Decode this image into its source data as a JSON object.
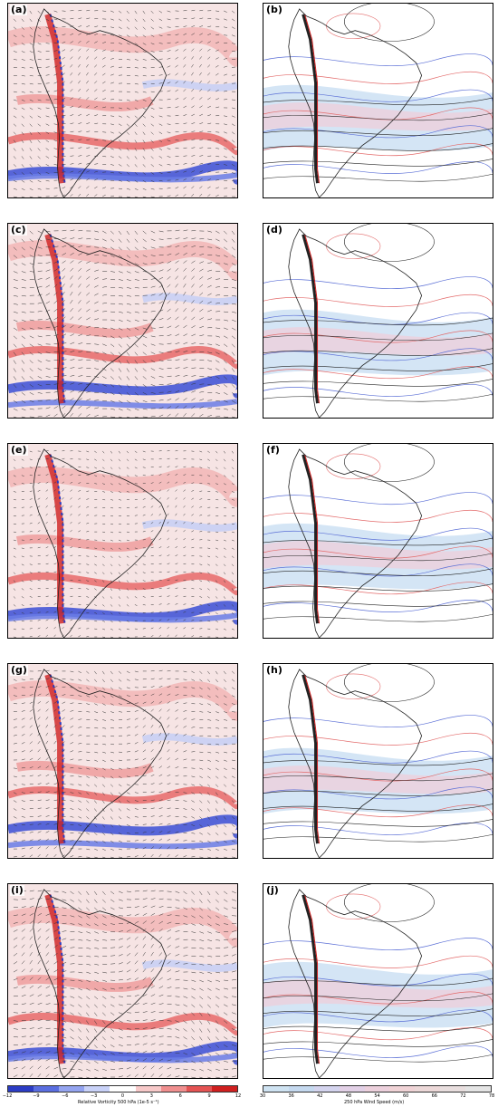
{
  "figure": {
    "panels_left": [
      {
        "id": "a",
        "label": "(a)"
      },
      {
        "id": "c",
        "label": "(c)"
      },
      {
        "id": "e",
        "label": "(e)"
      },
      {
        "id": "g",
        "label": "(g)"
      },
      {
        "id": "i",
        "label": "(i)"
      }
    ],
    "panels_right": [
      {
        "id": "b",
        "label": "(b)"
      },
      {
        "id": "d",
        "label": "(d)"
      },
      {
        "id": "f",
        "label": "(f)"
      },
      {
        "id": "h",
        "label": "(h)"
      },
      {
        "id": "j",
        "label": "(j)"
      }
    ]
  },
  "chart_data": [
    {
      "type": "heatmap",
      "field": "vorticity",
      "colorbar": {
        "label": "Relative Vorticity 500 hPa (1e-5 s⁻¹)",
        "ticks": [
          "−12",
          "−9",
          "−6",
          "−3",
          "0",
          "3",
          "6",
          "9",
          "12"
        ],
        "range": [
          -12,
          12
        ],
        "colors": [
          "#2b3cc4",
          "#5a6ee0",
          "#94a4f0",
          "#c9d2f8",
          "#ffffff",
          "#f7c9c9",
          "#f08f8f",
          "#e45353",
          "#cf1f1f"
        ]
      }
    },
    {
      "type": "heatmap",
      "field": "wind_speed",
      "colorbar": {
        "label": "250 hPa Wind Speed (m/s)",
        "ticks": [
          "30",
          "36",
          "42",
          "48",
          "54",
          "60",
          "66",
          "72",
          "78"
        ],
        "range": [
          30,
          78
        ],
        "colors": [
          "#cfe3f2",
          "#c5d9ef",
          "#d4d4ee",
          "#e2d0e6",
          "#ecd0dc",
          "#f0d3d6",
          "#ecd8d8",
          "#e8dede",
          "#e4e4e4"
        ]
      }
    }
  ]
}
